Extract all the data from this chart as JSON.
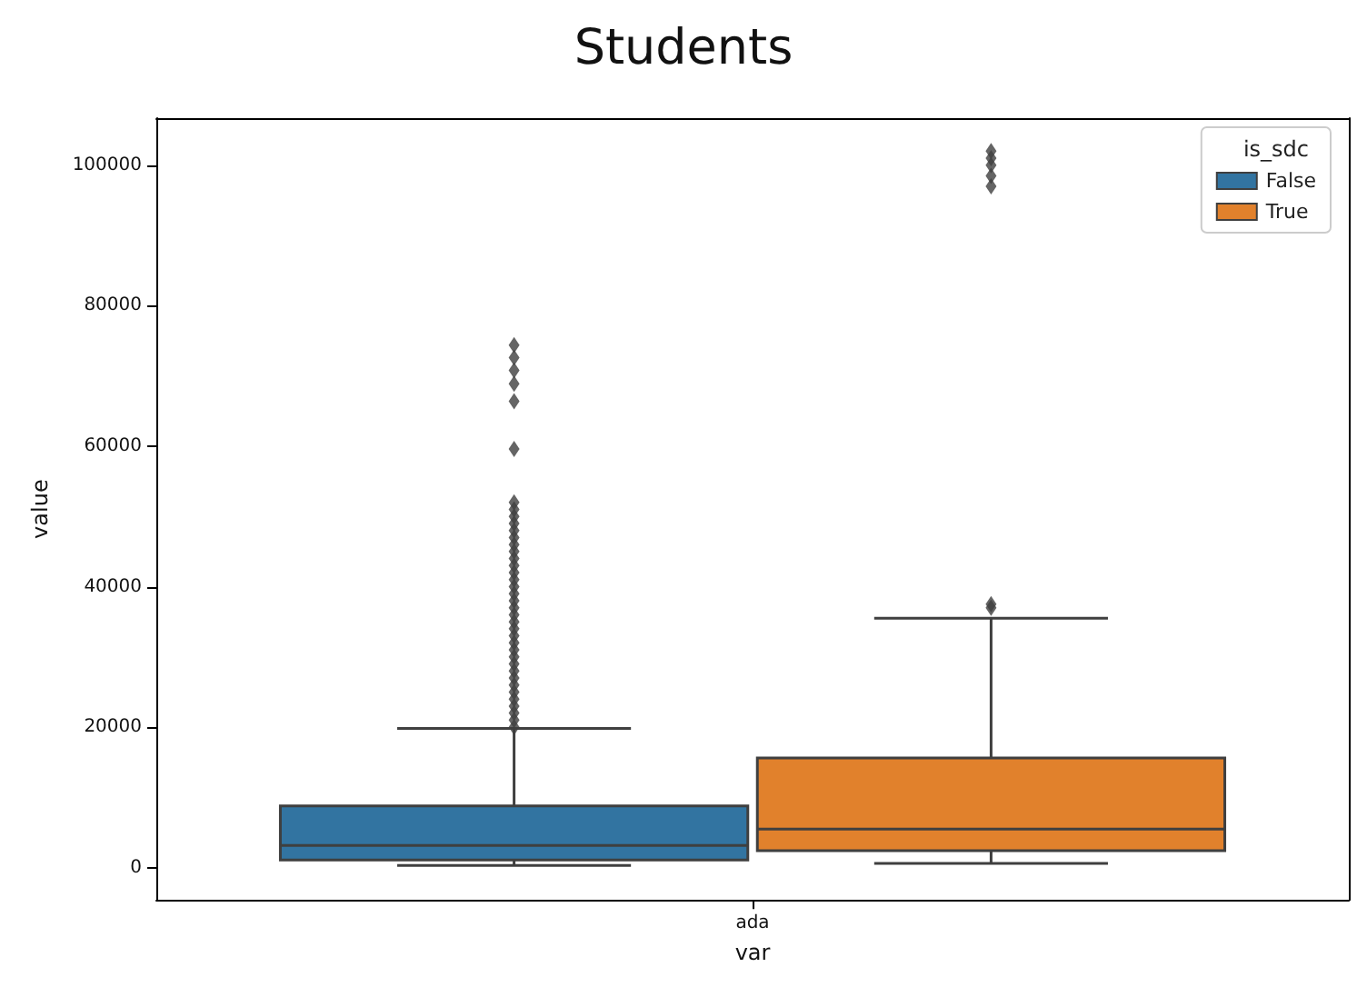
{
  "chart_data": {
    "type": "box",
    "title": "Students",
    "xlabel": "var",
    "ylabel": "value",
    "legend_title": "is_sdc",
    "legend": "top right",
    "grid": false,
    "marker": "diamond",
    "categories": [
      "ada"
    ],
    "ylim": [
      -4600,
      106700
    ],
    "yticks": [
      0,
      20000,
      40000,
      60000,
      80000,
      100000
    ],
    "series": [
      {
        "name": "False",
        "color": "#3274a1",
        "boxes": [
          {
            "low": 300,
            "q1": 1100,
            "median": 3150,
            "q3": 8800,
            "high": 19800,
            "outliers": [
              20000,
              21000,
              22000,
              23000,
              24000,
              25000,
              26000,
              27000,
              28000,
              29000,
              30000,
              31000,
              32000,
              33000,
              34000,
              35000,
              36000,
              37000,
              38000,
              39000,
              40000,
              41000,
              42000,
              43000,
              44000,
              45000,
              46000,
              47000,
              48000,
              49000,
              50000,
              51000,
              52000,
              59600,
              66400,
              68900,
              70800,
              72600,
              74400
            ]
          }
        ]
      },
      {
        "name": "True",
        "color": "#e1812c",
        "boxes": [
          {
            "low": 600,
            "q1": 2400,
            "median": 5500,
            "q3": 15600,
            "high": 35500,
            "outliers": [
              37000,
              37500,
              97000,
              98500,
              100000,
              101000,
              102000
            ]
          }
        ]
      }
    ]
  }
}
